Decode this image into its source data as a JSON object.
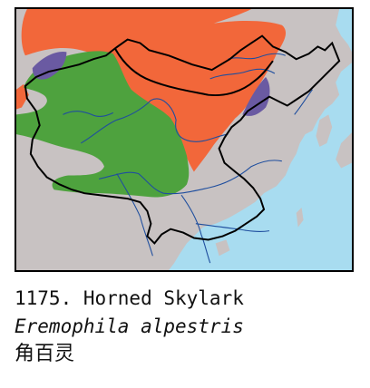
{
  "map": {
    "colors": {
      "sea": "#a8dcf0",
      "land": "#c8c2c2",
      "breeding_range": "#f2673a",
      "resident_range": "#4ea23e",
      "winter_range": "#6a5aa2",
      "border": "#000000",
      "rivers": "#1f4e9e"
    }
  },
  "caption": {
    "number_and_common_name": "1175. Horned Skylark",
    "scientific_name": "Eremophila alpestris",
    "chinese_name": "角百灵"
  }
}
